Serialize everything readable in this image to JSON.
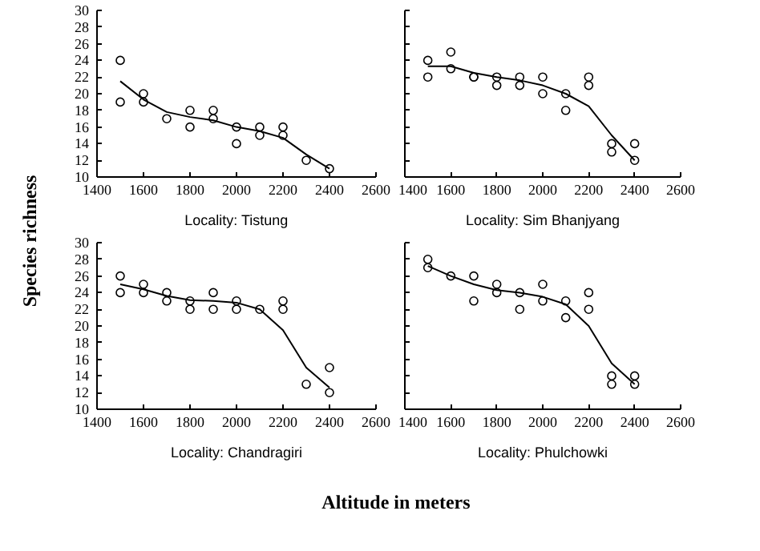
{
  "chart_data": [
    {
      "type": "scatter",
      "title": "Locality: Tistung",
      "ylabel": "Species richness",
      "xlim": [
        1400,
        2600
      ],
      "ylim": [
        10,
        30
      ],
      "xticks": [
        1400,
        1600,
        1800,
        2000,
        2200,
        2400,
        2600
      ],
      "yticks": [
        10,
        12,
        14,
        16,
        18,
        20,
        22,
        24,
        26,
        28,
        30
      ],
      "series": [
        {
          "marker": "circle",
          "color": "#000000",
          "x": [
            1500,
            1500,
            1600,
            1600,
            1700,
            1800,
            1800,
            1900,
            1900,
            2000,
            2000,
            2100,
            2100,
            2200,
            2200,
            2300,
            2400
          ],
          "values": [
            24,
            19,
            20,
            19,
            17,
            18,
            16,
            18,
            17,
            16,
            14,
            16,
            15,
            16,
            15,
            12,
            11
          ]
        },
        {
          "type": "line",
          "color": "#000000",
          "x": [
            1500,
            1600,
            1700,
            1800,
            1900,
            2000,
            2100,
            2200,
            2300,
            2400
          ],
          "values": [
            21.5,
            19.3,
            17.8,
            17.2,
            16.8,
            16,
            15.5,
            14.7,
            12.7,
            11
          ]
        }
      ]
    },
    {
      "type": "scatter",
      "title": "Locality: Sim Bhanjyang",
      "tick_labels": "x",
      "xlim": [
        1400,
        2600
      ],
      "ylim": [
        10,
        30
      ],
      "xticks": [
        1400,
        1600,
        1800,
        2000,
        2200,
        2400,
        2600
      ],
      "yticks": [
        10,
        12,
        14,
        16,
        18,
        20,
        22,
        24,
        26,
        28,
        30
      ],
      "series": [
        {
          "marker": "circle",
          "color": "#000000",
          "x": [
            1500,
            1500,
            1600,
            1600,
            1700,
            1700,
            1800,
            1800,
            1900,
            1900,
            2000,
            2000,
            2100,
            2100,
            2200,
            2200,
            2300,
            2300,
            2400,
            2400
          ],
          "values": [
            24,
            22,
            25,
            23,
            22,
            22,
            22,
            21,
            22,
            21,
            22,
            20,
            20,
            18,
            22,
            21,
            14,
            13,
            14,
            12
          ]
        },
        {
          "type": "line",
          "color": "#000000",
          "x": [
            1500,
            1600,
            1700,
            1800,
            1900,
            2000,
            2100,
            2200,
            2300,
            2400
          ],
          "values": [
            23.3,
            23.3,
            22.5,
            22,
            21.6,
            21,
            20,
            18.5,
            15,
            12
          ]
        }
      ]
    },
    {
      "type": "scatter",
      "title": "Locality: Chandragiri",
      "xlabel": "Altitude in meters",
      "xlim": [
        1400,
        2600
      ],
      "ylim": [
        10,
        30
      ],
      "xticks": [
        1400,
        1600,
        1800,
        2000,
        2200,
        2400,
        2600
      ],
      "yticks": [
        10,
        12,
        14,
        16,
        18,
        20,
        22,
        24,
        26,
        28,
        30
      ],
      "series": [
        {
          "marker": "circle",
          "color": "#000000",
          "x": [
            1500,
            1500,
            1600,
            1600,
            1700,
            1700,
            1800,
            1800,
            1900,
            1900,
            2000,
            2000,
            2100,
            2200,
            2200,
            2300,
            2400,
            2400
          ],
          "values": [
            26,
            24,
            25,
            24,
            24,
            23,
            23,
            22,
            24,
            22,
            23,
            22,
            22,
            23,
            22,
            13,
            15,
            12
          ]
        },
        {
          "type": "line",
          "color": "#000000",
          "x": [
            1500,
            1600,
            1700,
            1800,
            1900,
            2000,
            2100,
            2200,
            2300,
            2400
          ],
          "values": [
            25,
            24.4,
            23.6,
            23.1,
            23,
            22.8,
            22,
            19.5,
            15,
            12.6
          ]
        }
      ]
    },
    {
      "type": "scatter",
      "title": "Locality: Phulchowki",
      "tick_labels": "x",
      "xlim": [
        1400,
        2600
      ],
      "ylim": [
        10,
        30
      ],
      "xticks": [
        1400,
        1600,
        1800,
        2000,
        2200,
        2400,
        2600
      ],
      "yticks": [
        10,
        12,
        14,
        16,
        18,
        20,
        22,
        24,
        26,
        28,
        30
      ],
      "series": [
        {
          "marker": "circle",
          "color": "#000000",
          "x": [
            1500,
            1500,
            1600,
            1700,
            1700,
            1800,
            1800,
            1900,
            1900,
            2000,
            2000,
            2100,
            2100,
            2200,
            2200,
            2300,
            2300,
            2400,
            2400
          ],
          "values": [
            28,
            27,
            26,
            26,
            23,
            25,
            24,
            24,
            22,
            25,
            23,
            23,
            21,
            24,
            22,
            14,
            13,
            14,
            13
          ]
        },
        {
          "type": "line",
          "color": "#000000",
          "x": [
            1500,
            1600,
            1700,
            1800,
            1900,
            2000,
            2100,
            2200,
            2300,
            2400
          ],
          "values": [
            27.2,
            26,
            25,
            24.3,
            24,
            23.5,
            22.6,
            20,
            15.5,
            13
          ]
        }
      ]
    }
  ]
}
